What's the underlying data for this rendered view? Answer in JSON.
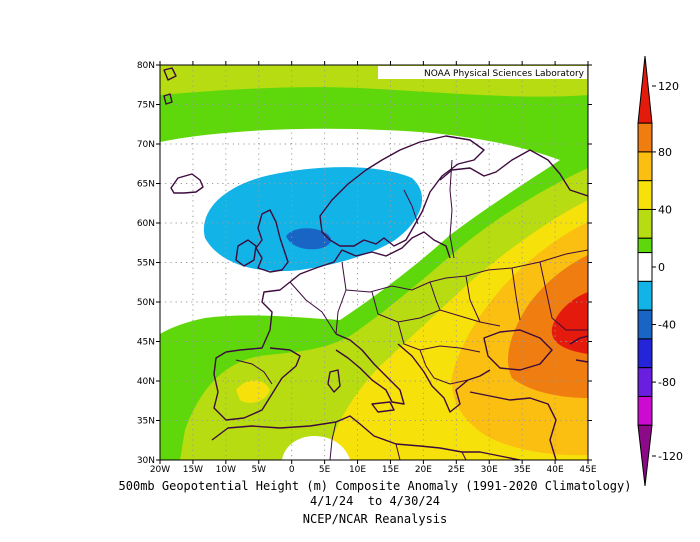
{
  "map": {
    "credit": "NOAA Physical Sciences Laboratory",
    "lat_labels": [
      "80N",
      "75N",
      "70N",
      "65N",
      "60N",
      "55N",
      "50N",
      "45N",
      "40N",
      "35N",
      "30N"
    ],
    "lon_labels": [
      "20W",
      "15W",
      "10W",
      "5W",
      "0",
      "5E",
      "10E",
      "15E",
      "20E",
      "25E",
      "30E",
      "35E",
      "40E",
      "45E"
    ],
    "extent": {
      "lon": [
        -20,
        45
      ],
      "lat": [
        30,
        80
      ]
    }
  },
  "colorbar": {
    "tick_labels": [
      "120",
      "80",
      "40",
      "0",
      "-40",
      "-80",
      "-120"
    ],
    "bins": [
      {
        "from": 100,
        "to": 120,
        "color": "#e31a0c"
      },
      {
        "from": 80,
        "to": 100,
        "color": "#f07d10"
      },
      {
        "from": 60,
        "to": 80,
        "color": "#fbbf12"
      },
      {
        "from": 40,
        "to": 60,
        "color": "#f6e20a"
      },
      {
        "from": 20,
        "to": 40,
        "color": "#b8dc12"
      },
      {
        "from": 10,
        "to": 20,
        "color": "#5fd80b"
      },
      {
        "from": -10,
        "to": 10,
        "color": "#ffffff"
      },
      {
        "from": -30,
        "to": -10,
        "color": "#12b4e8"
      },
      {
        "from": -50,
        "to": -30,
        "color": "#1865c6"
      },
      {
        "from": -70,
        "to": -50,
        "color": "#2424d8"
      },
      {
        "from": -90,
        "to": -70,
        "color": "#6a1ee0"
      },
      {
        "from": -110,
        "to": -90,
        "color": "#cc0ad2"
      },
      {
        "from": -130,
        "to": -110,
        "color": "#8c0a88"
      }
    ]
  },
  "captions": {
    "line1": "500mb Geopotential Height (m) Composite Anomaly (1991-2020 Climatology)",
    "line2": "4/1/24  to 4/30/24",
    "line3": "NCEP/NCAR Reanalysis"
  },
  "colors": {
    "coast": "#3d0a3d",
    "green": "#5fd80b",
    "lime": "#b8dc12",
    "yellow": "#f6e20a",
    "gold": "#fbbf12",
    "orange": "#f07d10",
    "red": "#e31a0c",
    "cyan": "#12b4e8",
    "blue": "#1865c6"
  }
}
